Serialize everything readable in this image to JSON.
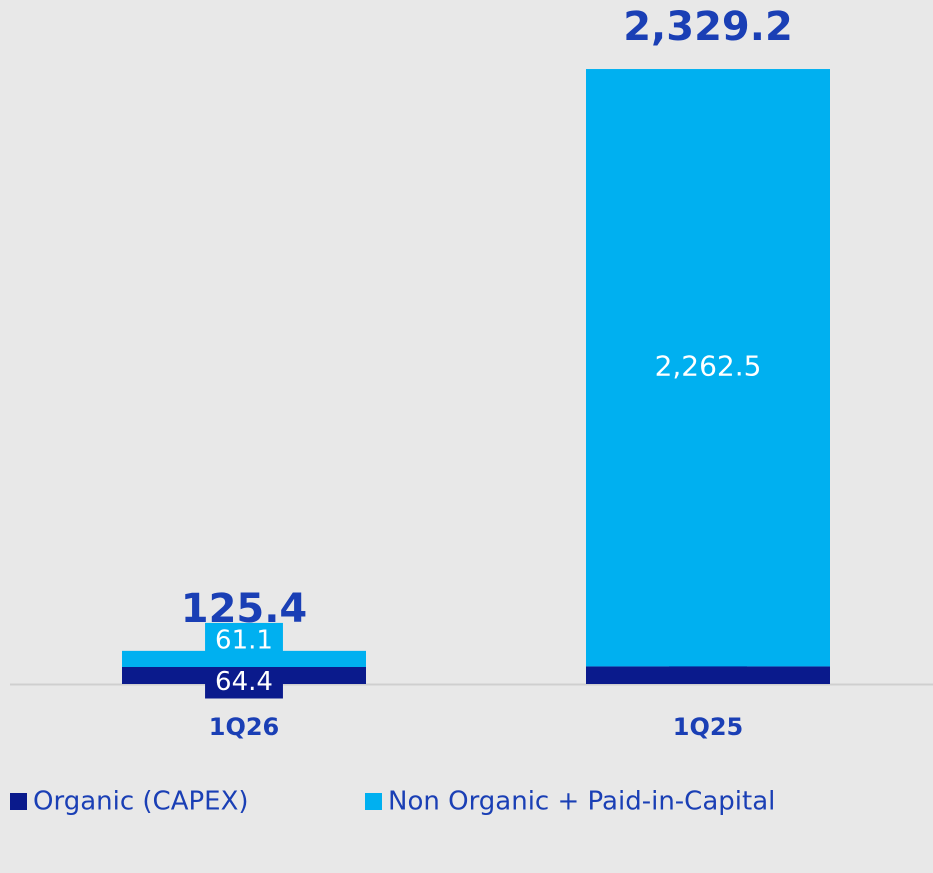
{
  "chart_data": {
    "type": "stacked_bar",
    "categories": [
      "1Q26",
      "1Q25"
    ],
    "series": [
      {
        "name": "Organic (CAPEX)",
        "color": "#0a1a8c",
        "values": [
          64.4,
          66.6
        ]
      },
      {
        "name": "Non Organic + Paid-in-Capital",
        "color": "#00b0f0",
        "values": [
          61.1,
          2262.5
        ],
        "value_labels": [
          "61.1",
          "2,262.5"
        ]
      }
    ],
    "totals": {
      "values": [
        125.4,
        2329.2
      ],
      "value_labels": [
        "125.4",
        "2,329.2"
      ]
    },
    "ylim": [
      0,
      2329.2
    ],
    "legend": "bottom-left"
  }
}
